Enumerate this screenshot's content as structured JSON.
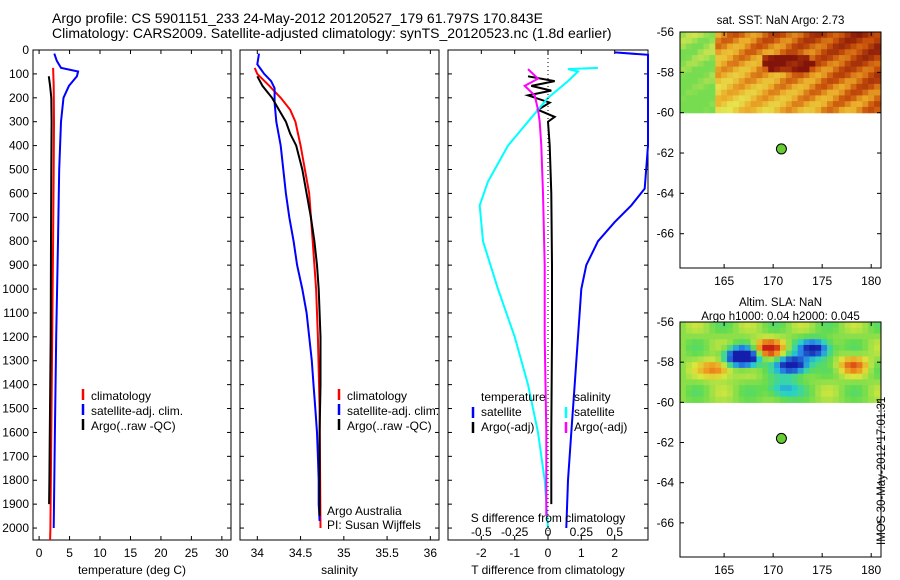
{
  "header": {
    "line1": "Argo profile: CS 5901151_233 24-May-2012 20120527_179 61.797S 170.843E",
    "line2": "Climatology: CARS2009. Satellite-adjusted climatology: synTS_20120523.nc (1.8d earlier)"
  },
  "stamp": "IMOS 30-May-2012 17:01:31",
  "colors": {
    "climatology": "#ff0000",
    "satellite": "#0000ff",
    "argo": "#000000",
    "salinity_satellite": "#00ffff",
    "salinity_argo": "#ff00ff",
    "float_marker": "#66cc33"
  },
  "chart_data": [
    {
      "id": "temperature-panel",
      "type": "line",
      "xlabel": "temperature (deg C)",
      "ylabel": "",
      "xlim": [
        -1,
        31.5
      ],
      "ylim": [
        2050,
        0
      ],
      "xticks": [
        0,
        5,
        10,
        15,
        20,
        25,
        30
      ],
      "yticks": [
        0,
        100,
        200,
        300,
        400,
        500,
        600,
        700,
        800,
        900,
        1000,
        1100,
        1200,
        1300,
        1400,
        1500,
        1600,
        1700,
        1800,
        1900,
        2000
      ],
      "legend": [
        "climatology",
        "satellite-adj. clim.",
        "Argo(..raw -QC)"
      ],
      "series": [
        {
          "name": "climatology",
          "color": "#ff0000",
          "points": [
            [
              2.3,
              75
            ],
            [
              2.4,
              150
            ],
            [
              2.45,
              300
            ],
            [
              2.4,
              500
            ],
            [
              2.3,
              800
            ],
            [
              2.15,
              1200
            ],
            [
              2.0,
              1600
            ],
            [
              1.85,
              2000
            ],
            [
              1.8,
              2050
            ]
          ]
        },
        {
          "name": "satellite-adj. clim.",
          "color": "#0000ff",
          "points": [
            [
              2.5,
              15
            ],
            [
              2.9,
              45
            ],
            [
              3.6,
              75
            ],
            [
              6.4,
              90
            ],
            [
              6.2,
              110
            ],
            [
              4.9,
              150
            ],
            [
              4.0,
              200
            ],
            [
              3.6,
              300
            ],
            [
              3.3,
              500
            ],
            [
              3.1,
              800
            ],
            [
              2.8,
              1200
            ],
            [
              2.6,
              1600
            ],
            [
              2.4,
              2000
            ]
          ]
        },
        {
          "name": "Argo(..raw -QC)",
          "color": "#000000",
          "points": [
            [
              1.6,
              110
            ],
            [
              1.8,
              150
            ],
            [
              2.0,
              200
            ],
            [
              2.05,
              300
            ],
            [
              2.0,
              500
            ],
            [
              1.95,
              800
            ],
            [
              1.9,
              1200
            ],
            [
              1.75,
              1600
            ],
            [
              1.7,
              1800
            ],
            [
              1.65,
              1900
            ]
          ]
        }
      ]
    },
    {
      "id": "salinity-panel",
      "type": "line",
      "xlabel": "salinity",
      "ylabel": "",
      "xlim": [
        33.8,
        36.1
      ],
      "ylim": [
        2050,
        0
      ],
      "xticks": [
        34,
        34.5,
        35,
        35.5,
        36
      ],
      "xtick_labels": [
        "34",
        "34.5",
        "35",
        "35.5",
        "36"
      ],
      "legend": [
        "climatology",
        "satellite-adj. clim.",
        "Argo(..raw -QC)"
      ],
      "annotation": [
        "Argo Australia",
        "PI: Susan Wijffels"
      ],
      "series": [
        {
          "name": "climatology",
          "color": "#ff0000",
          "points": [
            [
              33.97,
              75
            ],
            [
              34.0,
              100
            ],
            [
              34.14,
              150
            ],
            [
              34.27,
              200
            ],
            [
              34.38,
              250
            ],
            [
              34.44,
              300
            ],
            [
              34.5,
              400
            ],
            [
              34.55,
              500
            ],
            [
              34.6,
              600
            ],
            [
              34.64,
              800
            ],
            [
              34.68,
              1000
            ],
            [
              34.7,
              1200
            ],
            [
              34.72,
              1500
            ],
            [
              34.73,
              2000
            ]
          ]
        },
        {
          "name": "satellite-adj. clim.",
          "color": "#0000ff",
          "points": [
            [
              34.02,
              15
            ],
            [
              34.0,
              60
            ],
            [
              34.04,
              80
            ],
            [
              34.08,
              100
            ],
            [
              34.16,
              130
            ],
            [
              34.2,
              160
            ],
            [
              34.2,
              220
            ],
            [
              34.22,
              300
            ],
            [
              34.27,
              400
            ],
            [
              34.3,
              500
            ],
            [
              34.33,
              600
            ],
            [
              34.37,
              700
            ],
            [
              34.42,
              800
            ],
            [
              34.46,
              900
            ],
            [
              34.52,
              1000
            ],
            [
              34.57,
              1100
            ],
            [
              34.6,
              1200
            ],
            [
              34.63,
              1300
            ],
            [
              34.65,
              1400
            ],
            [
              34.67,
              1500
            ],
            [
              34.69,
              1600
            ],
            [
              34.7,
              1700
            ],
            [
              34.71,
              1800
            ],
            [
              34.71,
              1900
            ],
            [
              34.72,
              1970
            ]
          ]
        },
        {
          "name": "Argo(..raw -QC)",
          "color": "#000000",
          "points": [
            [
              34.0,
              110
            ],
            [
              34.06,
              150
            ],
            [
              34.17,
              200
            ],
            [
              34.25,
              250
            ],
            [
              34.33,
              300
            ],
            [
              34.38,
              350
            ],
            [
              34.45,
              400
            ],
            [
              34.52,
              500
            ],
            [
              34.57,
              600
            ],
            [
              34.62,
              700
            ],
            [
              34.66,
              800
            ],
            [
              34.69,
              900
            ],
            [
              34.71,
              1000
            ],
            [
              34.73,
              1200
            ],
            [
              34.73,
              1400
            ],
            [
              34.72,
              1600
            ],
            [
              34.72,
              1800
            ],
            [
              34.72,
              1950
            ]
          ]
        }
      ]
    },
    {
      "id": "difference-panel",
      "type": "line",
      "xlabel": "T difference from climatology",
      "xlabel_top": "S difference from climatology",
      "ylabel": "",
      "xlim": [
        -3,
        3
      ],
      "ylim": [
        2050,
        0
      ],
      "xticks": [
        -2,
        -1,
        0,
        1,
        2
      ],
      "xtick_labels": [
        "-2",
        "-1",
        "0",
        "1",
        "2"
      ],
      "xticks_top": [
        -0.5,
        -0.25,
        0,
        0.25,
        0.5
      ],
      "xtick_labels_top": [
        "-0.5",
        "-0.25",
        "0",
        "0.25",
        "0.5"
      ],
      "legend": [
        "temperature",
        "satellite",
        "Argo(-adj)",
        "salinity",
        "satellite",
        "Argo(-adj)"
      ],
      "series": [
        {
          "name": "temperature satellite",
          "color": "#0000ff",
          "points": [
            [
              2.0,
              10
            ],
            [
              3.0,
              20
            ],
            [
              3.0,
              100
            ],
            [
              3.0,
              400
            ],
            [
              2.9,
              580
            ],
            [
              2.5,
              650
            ],
            [
              2.0,
              720
            ],
            [
              1.5,
              800
            ],
            [
              1.15,
              900
            ],
            [
              1.0,
              1000
            ],
            [
              0.9,
              1200
            ],
            [
              0.8,
              1400
            ],
            [
              0.7,
              1600
            ],
            [
              0.6,
              1800
            ],
            [
              0.55,
              2000
            ]
          ]
        },
        {
          "name": "temperature Argo(-adj)",
          "color": "#000000",
          "points": [
            [
              -0.6,
              110
            ],
            [
              0.2,
              130
            ],
            [
              -0.5,
              150
            ],
            [
              0.1,
              170
            ],
            [
              -0.6,
              190
            ],
            [
              0.05,
              220
            ],
            [
              -0.3,
              250
            ],
            [
              0.2,
              280
            ],
            [
              0.0,
              300
            ],
            [
              0.05,
              400
            ],
            [
              0.1,
              600
            ],
            [
              0.12,
              900
            ],
            [
              0.12,
              1200
            ],
            [
              0.1,
              1600
            ],
            [
              0.1,
              1900
            ]
          ]
        },
        {
          "name": "salinity satellite",
          "color": "#00ffff",
          "points": [
            [
              1.5,
              75
            ],
            [
              0.6,
              80
            ],
            [
              0.9,
              90
            ],
            [
              0.6,
              130
            ],
            [
              0.0,
              200
            ],
            [
              -0.6,
              300
            ],
            [
              -1.2,
              400
            ],
            [
              -1.8,
              550
            ],
            [
              -2.05,
              650
            ],
            [
              -1.95,
              800
            ],
            [
              -1.5,
              1000
            ],
            [
              -1.0,
              1200
            ],
            [
              -0.6,
              1400
            ],
            [
              -0.3,
              1600
            ],
            [
              -0.1,
              1800
            ],
            [
              0.0,
              2000
            ]
          ]
        },
        {
          "name": "salinity Argo(-adj)",
          "color": "#ff00ff",
          "points": [
            [
              -0.6,
              80
            ],
            [
              -0.3,
              120
            ],
            [
              -0.7,
              150
            ],
            [
              -0.4,
              190
            ],
            [
              -0.3,
              250
            ],
            [
              -0.25,
              300
            ],
            [
              -0.2,
              400
            ],
            [
              -0.15,
              600
            ],
            [
              -0.1,
              900
            ],
            [
              -0.1,
              1200
            ],
            [
              -0.05,
              1600
            ],
            [
              -0.05,
              1950
            ]
          ]
        }
      ]
    },
    {
      "id": "sst-map",
      "type": "heatmap",
      "title": "sat. SST: NaN Argo: 2.73",
      "xlim": [
        160.5,
        181
      ],
      "ylim": [
        -67.7,
        -56
      ],
      "xticks": [
        165,
        170,
        175,
        180
      ],
      "yticks": [
        -56,
        -58,
        -60,
        -62,
        -64,
        -66
      ],
      "data_ylim": [
        -56,
        -60
      ],
      "float": {
        "lon": 170.843,
        "lat": -61.797
      }
    },
    {
      "id": "sla-map",
      "type": "heatmap",
      "title": [
        "Altim. SLA: NaN",
        "Argo h1000: 0.04 h2000: 0.045"
      ],
      "xlim": [
        160.5,
        181
      ],
      "ylim": [
        -67.7,
        -56
      ],
      "xticks": [
        165,
        170,
        175,
        180
      ],
      "yticks": [
        -56,
        -58,
        -60,
        -62,
        -64,
        -66
      ],
      "data_ylim": [
        -56,
        -60
      ],
      "float": {
        "lon": 170.843,
        "lat": -61.797
      }
    }
  ]
}
